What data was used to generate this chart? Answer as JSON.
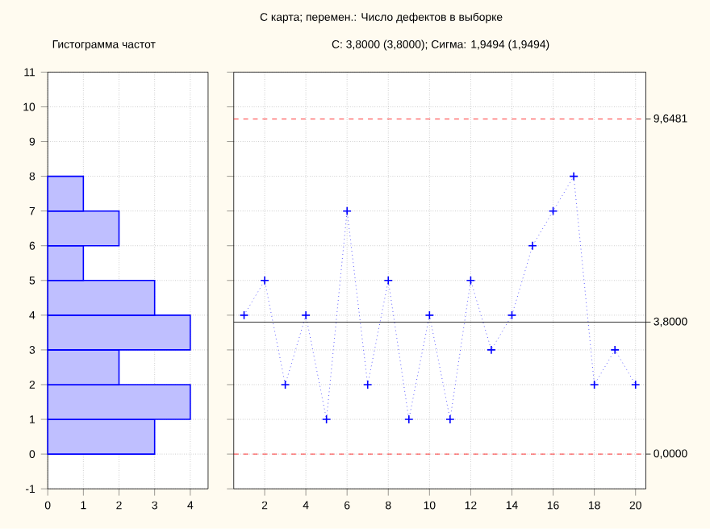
{
  "chart_data": [
    {
      "type": "histogram",
      "orientation": "horizontal",
      "title": "Гистограмма частот",
      "bins": [
        0,
        1,
        2,
        3,
        4,
        5,
        6,
        7,
        8
      ],
      "values": [
        3,
        4,
        2,
        4,
        3,
        1,
        2,
        1
      ],
      "color": "#0000ff",
      "xlim": [
        0,
        4.5
      ],
      "xticks": [
        0,
        1,
        2,
        3,
        4
      ],
      "ylim": [
        -1,
        11
      ],
      "yticks": [
        -1,
        0,
        1,
        2,
        3,
        4,
        5,
        6,
        7,
        8,
        9,
        10,
        11
      ],
      "grid": true
    },
    {
      "type": "line",
      "title": "С карта; перемен.:  Число дефектов  в  выборке",
      "subtitle": "С: 3,8000 (3,8000); Сигма: 1,9494 (1,9494)",
      "x": [
        1,
        2,
        3,
        4,
        5,
        6,
        7,
        8,
        9,
        10,
        11,
        12,
        13,
        14,
        15,
        16,
        17,
        18,
        19,
        20
      ],
      "values": [
        4,
        5,
        2,
        4,
        1,
        7,
        2,
        5,
        1,
        4,
        1,
        5,
        3,
        4,
        6,
        7,
        8,
        2,
        3,
        2
      ],
      "color": "#0000ff",
      "marker": "cross",
      "line_style": "dotted",
      "xlim": [
        0.5,
        20.5
      ],
      "xticks": [
        2,
        4,
        6,
        8,
        10,
        12,
        14,
        16,
        18,
        20
      ],
      "ylim": [
        -1,
        11
      ],
      "yticks": [
        -1,
        0,
        1,
        2,
        3,
        4,
        5,
        6,
        7,
        8,
        9,
        10,
        11
      ],
      "tick_labels": "x",
      "grid": true,
      "ref_lines": [
        {
          "axis": "y",
          "value": 9.6481,
          "label": "9,6481",
          "color": "#ff0000",
          "line_style": "dashed"
        },
        {
          "axis": "y",
          "value": 3.8,
          "label": "3,8000",
          "color": "#000000",
          "line_style": "solid"
        },
        {
          "axis": "y",
          "value": 0,
          "label": "0,0000",
          "color": "#ff0000",
          "line_style": "dashed"
        }
      ]
    }
  ]
}
